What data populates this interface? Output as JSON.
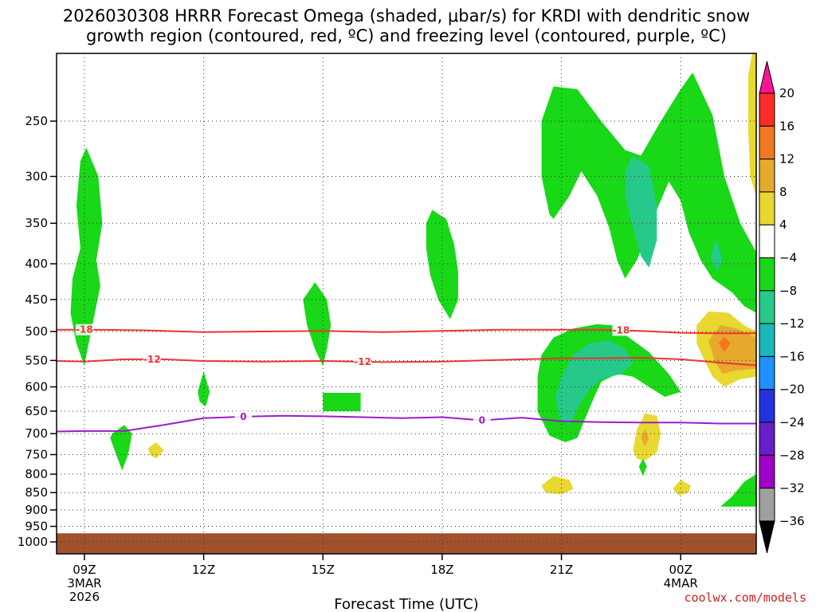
{
  "title_line1": "2026030308 HRRR Forecast Omega (shaded, μbar/s) for KRDI with dendritic snow",
  "title_line2": "growth region (contoured, red, ºC) and freezing level (contoured, purple, ºC)",
  "credit": "coolwx.com/models",
  "chart_data": {
    "type": "heatmap",
    "xlabel": "Forecast Time (UTC)",
    "x_ticks": [
      {
        "hour": 0,
        "label": "09Z",
        "sub1": "3MAR",
        "sub2": "2026"
      },
      {
        "hour": 3,
        "label": "12Z",
        "sub1": "",
        "sub2": ""
      },
      {
        "hour": 6,
        "label": "15Z",
        "sub1": "",
        "sub2": ""
      },
      {
        "hour": 9,
        "label": "18Z",
        "sub1": "",
        "sub2": ""
      },
      {
        "hour": 12,
        "label": "21Z",
        "sub1": "",
        "sub2": ""
      },
      {
        "hour": 15,
        "label": "00Z",
        "sub1": "4MAR",
        "sub2": ""
      }
    ],
    "xlim": [
      -0.7,
      16.9
    ],
    "ylabel": "",
    "ylim": [
      1040,
      200
    ],
    "y_scale": "log",
    "y_ticks": [
      250,
      300,
      350,
      400,
      450,
      500,
      550,
      600,
      650,
      700,
      750,
      800,
      850,
      900,
      950,
      1000
    ],
    "grid": true,
    "ground_level_hpa": 972,
    "colorbar": {
      "labels": [
        "20",
        "16",
        "12",
        "8",
        "4",
        "−4",
        "−8",
        "−12",
        "−16",
        "−20",
        "−24",
        "−28",
        "−32",
        "−36"
      ],
      "colors": [
        "#ff1493",
        "#ff2a2a",
        "#f07820",
        "#e6a92e",
        "#e8d830",
        "#ffffff",
        "#18d818",
        "#27c98a",
        "#1ab8b8",
        "#1e90ff",
        "#2233dd",
        "#6a1fc8",
        "#a100c8",
        "#a0a0a0",
        "#000000"
      ]
    },
    "series": [
      {
        "name": "-18",
        "color": "#ee3333",
        "points": [
          [
            -0.7,
            497
          ],
          [
            0,
            497
          ],
          [
            1.5,
            498
          ],
          [
            3,
            501
          ],
          [
            4.5,
            500
          ],
          [
            6,
            499
          ],
          [
            7.5,
            501
          ],
          [
            9,
            499
          ],
          [
            10.5,
            497
          ],
          [
            12,
            497
          ],
          [
            13,
            497
          ],
          [
            14,
            499
          ],
          [
            15,
            502
          ],
          [
            16,
            503
          ],
          [
            16.9,
            503
          ]
        ]
      },
      {
        "name": "-12",
        "color": "#ee3333",
        "points": [
          [
            -0.7,
            551
          ],
          [
            0,
            552
          ],
          [
            1,
            548
          ],
          [
            2,
            548
          ],
          [
            3,
            551
          ],
          [
            4.5,
            552
          ],
          [
            6,
            551
          ],
          [
            7.5,
            553
          ],
          [
            9,
            552
          ],
          [
            10.5,
            549
          ],
          [
            12,
            546
          ],
          [
            13,
            546
          ],
          [
            14,
            545
          ],
          [
            15,
            548
          ],
          [
            16,
            554
          ],
          [
            16.9,
            559
          ]
        ]
      },
      {
        "name": "0",
        "color": "#9a1ec8",
        "points": [
          [
            -0.7,
            695
          ],
          [
            0,
            694
          ],
          [
            1,
            694
          ],
          [
            2,
            680
          ],
          [
            3,
            665
          ],
          [
            4,
            662
          ],
          [
            5,
            660
          ],
          [
            6,
            661
          ],
          [
            7,
            663
          ],
          [
            8,
            665
          ],
          [
            9,
            663
          ],
          [
            10,
            670
          ],
          [
            11,
            664
          ],
          [
            12,
            672
          ],
          [
            13,
            674
          ],
          [
            14,
            675
          ],
          [
            15,
            675
          ],
          [
            16,
            677
          ],
          [
            16.9,
            677
          ]
        ]
      }
    ],
    "omega_regions": [
      {
        "color": "#18d818",
        "points": [
          [
            -0.2,
            520
          ],
          [
            -0.35,
            470
          ],
          [
            -0.3,
            420
          ],
          [
            -0.1,
            380
          ],
          [
            -0.2,
            330
          ],
          [
            -0.1,
            285
          ],
          [
            0.05,
            273
          ],
          [
            0.35,
            300
          ],
          [
            0.45,
            350
          ],
          [
            0.3,
            395
          ],
          [
            0.4,
            430
          ],
          [
            0.2,
            490
          ],
          [
            0.05,
            540
          ],
          [
            0,
            560
          ]
        ]
      },
      {
        "color": "#18d818",
        "points": [
          [
            0.7,
            700
          ],
          [
            1,
            680
          ],
          [
            1.2,
            700
          ],
          [
            1.1,
            750
          ],
          [
            0.95,
            790
          ],
          [
            0.8,
            750
          ],
          [
            0.65,
            710
          ]
        ]
      },
      {
        "color": "#e8d830",
        "points": [
          [
            1.6,
            735
          ],
          [
            1.8,
            720
          ],
          [
            2,
            740
          ],
          [
            1.8,
            760
          ],
          [
            1.65,
            750
          ]
        ]
      },
      {
        "color": "#18d818",
        "points": [
          [
            2.85,
            610
          ],
          [
            3,
            570
          ],
          [
            3.15,
            610
          ],
          [
            3.05,
            640
          ],
          [
            2.9,
            630
          ]
        ]
      },
      {
        "color": "#18d818",
        "points": [
          [
            5.5,
            450
          ],
          [
            5.8,
            425
          ],
          [
            6.1,
            450
          ],
          [
            6.2,
            490
          ],
          [
            6.1,
            530
          ],
          [
            6,
            560
          ],
          [
            5.8,
            530
          ],
          [
            5.6,
            490
          ]
        ]
      },
      {
        "color": "#18d818",
        "points": [
          [
            6,
            612
          ],
          [
            6.95,
            612
          ],
          [
            6.95,
            650
          ],
          [
            6,
            650
          ]
        ]
      },
      {
        "color": "#18d818",
        "points": [
          [
            8.6,
            350
          ],
          [
            8.75,
            335
          ],
          [
            9.1,
            345
          ],
          [
            9.3,
            375
          ],
          [
            9.4,
            410
          ],
          [
            9.4,
            450
          ],
          [
            9.2,
            480
          ],
          [
            8.9,
            450
          ],
          [
            8.7,
            415
          ],
          [
            8.6,
            380
          ]
        ]
      },
      {
        "color": "#18d818",
        "points": [
          [
            11.7,
            340
          ],
          [
            11.5,
            300
          ],
          [
            11.5,
            250
          ],
          [
            11.8,
            223
          ],
          [
            12.4,
            225
          ],
          [
            13,
            250
          ],
          [
            13.6,
            275
          ],
          [
            14,
            280
          ],
          [
            14.5,
            250
          ],
          [
            15,
            225
          ],
          [
            15.3,
            213
          ],
          [
            15.8,
            245
          ],
          [
            16.1,
            300
          ],
          [
            16.5,
            350
          ],
          [
            16.9,
            385
          ],
          [
            16.9,
            470
          ],
          [
            16.6,
            460
          ],
          [
            16.3,
            440
          ],
          [
            15.8,
            420
          ],
          [
            15.5,
            395
          ],
          [
            15.2,
            360
          ],
          [
            15,
            325
          ],
          [
            14.7,
            305
          ],
          [
            14.3,
            345
          ],
          [
            13.9,
            395
          ],
          [
            13.6,
            420
          ],
          [
            13.4,
            395
          ],
          [
            13.2,
            355
          ],
          [
            12.9,
            320
          ],
          [
            12.5,
            295
          ],
          [
            12.2,
            320
          ],
          [
            11.8,
            345
          ]
        ]
      },
      {
        "color": "#27c98a",
        "points": [
          [
            13.6,
            295
          ],
          [
            13.8,
            280
          ],
          [
            14.2,
            290
          ],
          [
            14.4,
            330
          ],
          [
            14.4,
            370
          ],
          [
            14.2,
            405
          ],
          [
            14,
            390
          ],
          [
            13.8,
            355
          ],
          [
            13.6,
            320
          ]
        ]
      },
      {
        "color": "#27c98a",
        "points": [
          [
            15.75,
            390
          ],
          [
            15.9,
            370
          ],
          [
            16.05,
            395
          ],
          [
            15.9,
            410
          ]
        ]
      },
      {
        "color": "#18d818",
        "points": [
          [
            11.4,
            580
          ],
          [
            11.5,
            540
          ],
          [
            11.8,
            510
          ],
          [
            12.3,
            495
          ],
          [
            12.9,
            488
          ],
          [
            13.3,
            490
          ],
          [
            13.7,
            510
          ],
          [
            14.2,
            535
          ],
          [
            14.7,
            575
          ],
          [
            15,
            610
          ],
          [
            14.6,
            620
          ],
          [
            14.2,
            600
          ],
          [
            13.8,
            580
          ],
          [
            13.4,
            575
          ],
          [
            13,
            590
          ],
          [
            12.8,
            625
          ],
          [
            12.6,
            665
          ],
          [
            12.4,
            710
          ],
          [
            12.1,
            720
          ],
          [
            11.7,
            705
          ],
          [
            11.4,
            650
          ]
        ]
      },
      {
        "color": "#27c98a",
        "points": [
          [
            11.85,
            620
          ],
          [
            12,
            580
          ],
          [
            12.3,
            540
          ],
          [
            12.7,
            520
          ],
          [
            13.2,
            515
          ],
          [
            13.6,
            530
          ],
          [
            13.8,
            555
          ],
          [
            13.5,
            575
          ],
          [
            13,
            585
          ],
          [
            12.7,
            605
          ],
          [
            12.4,
            645
          ],
          [
            12.2,
            680
          ],
          [
            11.95,
            665
          ]
        ]
      },
      {
        "color": "#e8d830",
        "points": [
          [
            13.8,
            740
          ],
          [
            13.9,
            690
          ],
          [
            14.1,
            655
          ],
          [
            14.4,
            660
          ],
          [
            14.5,
            700
          ],
          [
            14.4,
            745
          ],
          [
            14.1,
            765
          ],
          [
            13.9,
            760
          ]
        ]
      },
      {
        "color": "#e6a92e",
        "points": [
          [
            14.0,
            710
          ],
          [
            14.1,
            690
          ],
          [
            14.2,
            710
          ],
          [
            14.1,
            730
          ]
        ]
      },
      {
        "color": "#18d818",
        "points": [
          [
            13.95,
            780
          ],
          [
            14.05,
            760
          ],
          [
            14.15,
            780
          ],
          [
            14.05,
            805
          ]
        ]
      },
      {
        "color": "#e8d830",
        "points": [
          [
            11.5,
            830
          ],
          [
            11.8,
            805
          ],
          [
            12.2,
            815
          ],
          [
            12.3,
            840
          ],
          [
            12.0,
            855
          ],
          [
            11.6,
            850
          ]
        ]
      },
      {
        "color": "#e8d830",
        "points": [
          [
            14.8,
            840
          ],
          [
            15,
            815
          ],
          [
            15.25,
            830
          ],
          [
            15.2,
            850
          ],
          [
            14.95,
            858
          ]
        ]
      },
      {
        "color": "#e8d830",
        "points": [
          [
            15.4,
            490
          ],
          [
            15.7,
            468
          ],
          [
            16.2,
            470
          ],
          [
            16.6,
            490
          ],
          [
            16.9,
            500
          ],
          [
            16.9,
            580
          ],
          [
            16.5,
            585
          ],
          [
            16.1,
            600
          ],
          [
            15.8,
            580
          ],
          [
            15.6,
            550
          ],
          [
            15.4,
            520
          ]
        ]
      },
      {
        "color": "#e6a92e",
        "points": [
          [
            15.7,
            515
          ],
          [
            16,
            490
          ],
          [
            16.4,
            495
          ],
          [
            16.9,
            510
          ],
          [
            16.9,
            565
          ],
          [
            16.4,
            568
          ],
          [
            16.05,
            575
          ],
          [
            15.85,
            550
          ]
        ]
      },
      {
        "color": "#f07820",
        "points": [
          [
            15.95,
            520
          ],
          [
            16.1,
            508
          ],
          [
            16.25,
            520
          ],
          [
            16.1,
            535
          ]
        ]
      },
      {
        "color": "#e8d830",
        "points": [
          [
            16.7,
            215
          ],
          [
            16.8,
            200
          ],
          [
            16.9,
            200
          ],
          [
            16.9,
            320
          ],
          [
            16.75,
            300
          ],
          [
            16.7,
            260
          ]
        ]
      },
      {
        "color": "#18d818",
        "points": [
          [
            16.0,
            890
          ],
          [
            16.3,
            860
          ],
          [
            16.6,
            820
          ],
          [
            16.9,
            800
          ],
          [
            16.9,
            890
          ]
        ]
      }
    ]
  }
}
